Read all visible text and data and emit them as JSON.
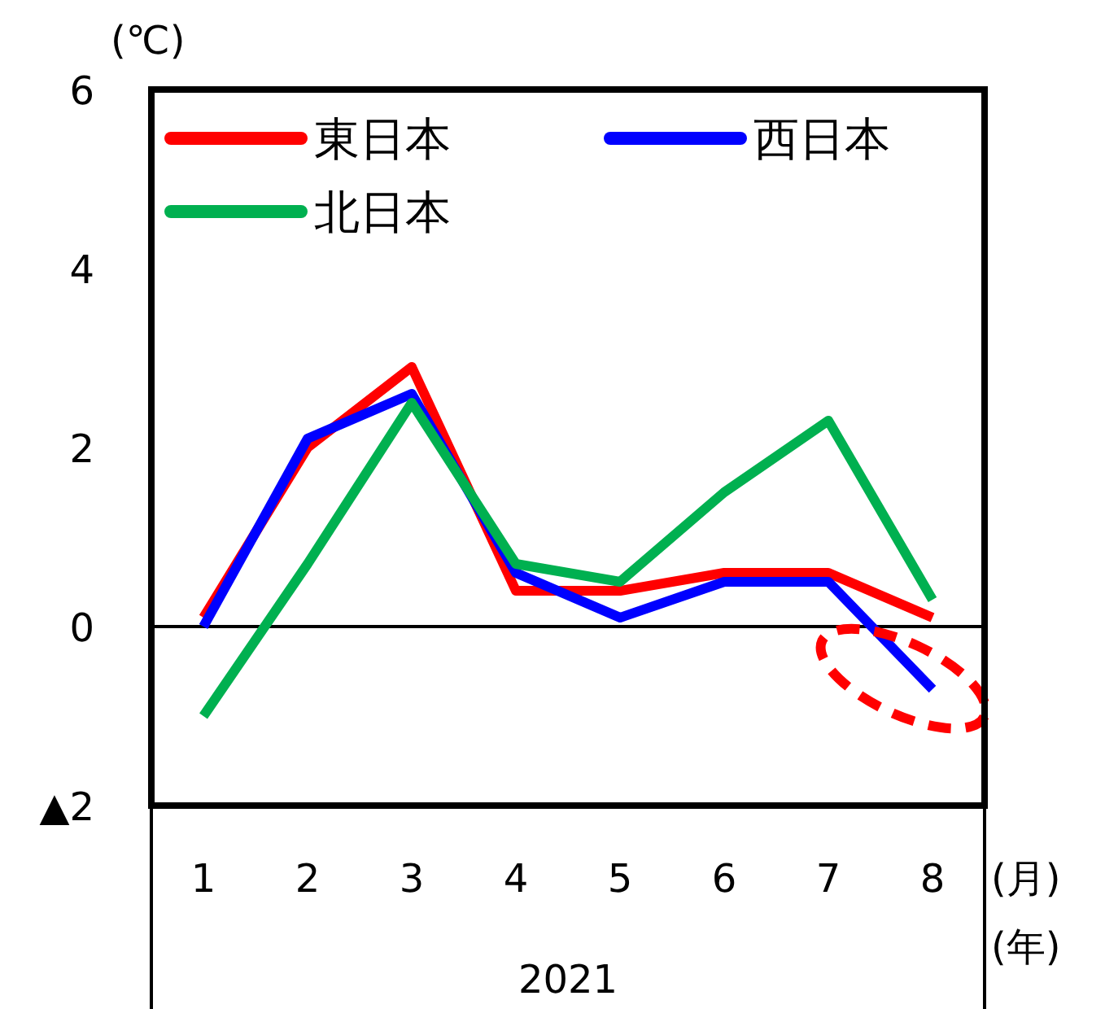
{
  "chart_data": {
    "type": "line",
    "ylabel": "(℃)",
    "xlabel": "(月)",
    "categories": [
      "1",
      "2",
      "3",
      "4",
      "5",
      "6",
      "7",
      "8"
    ],
    "series": [
      {
        "name": "東日本",
        "color": "#ff0000",
        "values": [
          0.1,
          2.0,
          2.9,
          0.4,
          0.4,
          0.6,
          0.6,
          0.1
        ]
      },
      {
        "name": "西日本",
        "color": "#0000ff",
        "values": [
          0,
          2.1,
          2.6,
          0.6,
          0.1,
          0.5,
          0.5,
          -0.7
        ]
      },
      {
        "name": "北日本",
        "color": "#00b050",
        "values": [
          -1.0,
          0.7,
          2.5,
          0.7,
          0.5,
          1.5,
          2.3,
          0.3
        ]
      }
    ],
    "ylim": [
      -2,
      6
    ],
    "yticks": [
      {
        "value": -2,
        "label": "▲2"
      },
      0,
      2,
      4,
      6
    ],
    "ref_lines": [
      {
        "axis": "y",
        "value": 0,
        "color": "#000000"
      }
    ],
    "annotations": [
      "2021",
      "(年)"
    ],
    "legend": "top left",
    "marker": "none",
    "line_style": "solid"
  }
}
